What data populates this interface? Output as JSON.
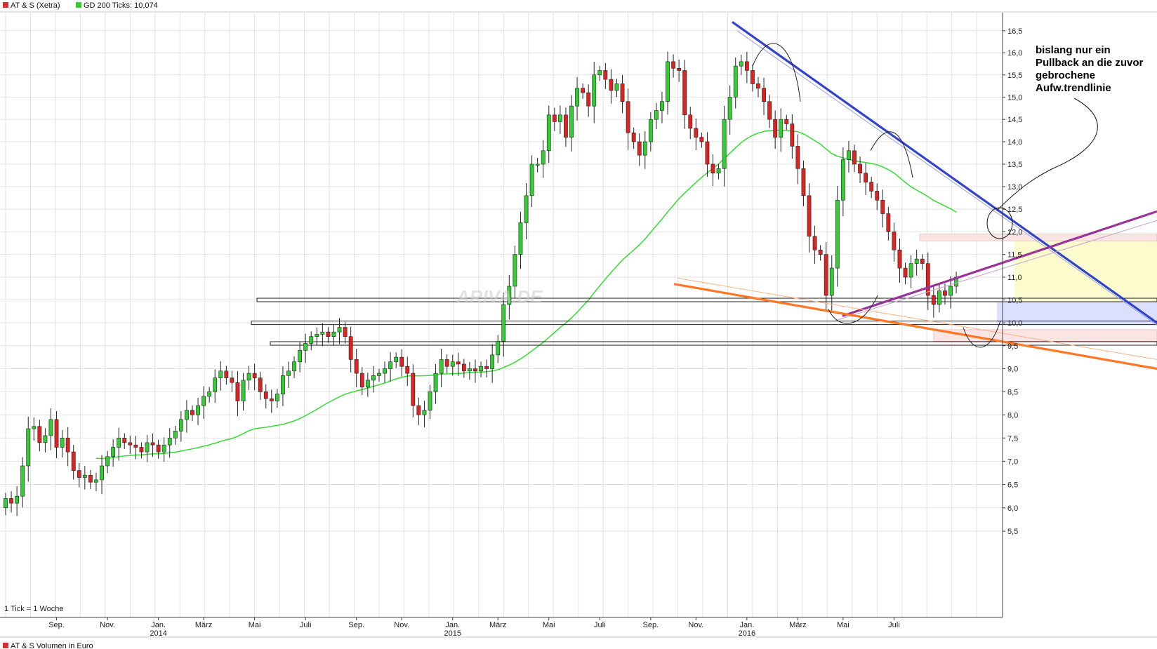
{
  "header": {
    "instrument_legend": "AT & S (Xetra)",
    "ma_legend": "GD 200 Ticks: 10,074",
    "instrument_color": "#d63030",
    "ma_color": "#33cc33"
  },
  "footer": {
    "tick_note": "1 Tick = 1 Woche",
    "volume_legend": "AT & S Volumen in Euro"
  },
  "watermark": "ARIVA.DE",
  "annotation": {
    "lines": [
      "bislang nur ein",
      "Pullback an die zuvor",
      "gebrochene",
      "Aufw.trendlinie"
    ]
  },
  "colors": {
    "up": "#33cc33",
    "down": "#dd2222",
    "grid": "#e2e2e2",
    "ma": "#33dd33",
    "downtrend": "#3344cc",
    "uptrend": "#993399",
    "support": "#ff7722"
  },
  "chart_data": {
    "type": "candlestick",
    "currency": "Euro",
    "ylim": [
      5.2,
      16.8
    ],
    "y_ticks": [
      "16,5",
      "16,0",
      "15,5",
      "15,0",
      "14,5",
      "14,0",
      "13,5",
      "13,0",
      "12,5",
      "12,0",
      "11,5",
      "11,0",
      "10,5",
      "10,0",
      "9,5",
      "9,0",
      "8,5",
      "8,0",
      "7,5",
      "7,0",
      "6,5",
      "6,0",
      "5,5"
    ],
    "x_ticks": [
      {
        "label": "Sep.",
        "year": "",
        "week": 9
      },
      {
        "label": "Nov.",
        "year": "",
        "week": 18
      },
      {
        "label": "Jan.",
        "year": "2014",
        "week": 27
      },
      {
        "label": "März",
        "year": "",
        "week": 35
      },
      {
        "label": "Mai",
        "year": "",
        "week": 44
      },
      {
        "label": "Juli",
        "year": "",
        "week": 53
      },
      {
        "label": "Sep.",
        "year": "",
        "week": 62
      },
      {
        "label": "Nov.",
        "year": "",
        "week": 70
      },
      {
        "label": "Jan.",
        "year": "2015",
        "week": 79
      },
      {
        "label": "März",
        "year": "",
        "week": 87
      },
      {
        "label": "Mai",
        "year": "",
        "week": 96
      },
      {
        "label": "Juli",
        "year": "",
        "week": 105
      },
      {
        "label": "Sep.",
        "year": "",
        "week": 114
      },
      {
        "label": "Nov.",
        "year": "",
        "week": 122
      },
      {
        "label": "Jan.",
        "year": "2016",
        "week": 131
      },
      {
        "label": "März",
        "year": "",
        "week": 140
      },
      {
        "label": "Mai",
        "year": "",
        "week": 148
      },
      {
        "label": "Juli",
        "year": "",
        "week": 157
      }
    ],
    "close": [
      6.2,
      6.1,
      6.25,
      6.9,
      7.7,
      7.75,
      7.4,
      7.55,
      7.9,
      7.3,
      7.5,
      7.2,
      6.8,
      6.65,
      6.7,
      6.55,
      6.6,
      6.9,
      7.1,
      7.3,
      7.5,
      7.4,
      7.35,
      7.3,
      7.2,
      7.4,
      7.35,
      7.2,
      7.35,
      7.5,
      7.65,
      7.9,
      8.1,
      8.0,
      8.2,
      8.4,
      8.5,
      8.8,
      8.95,
      8.8,
      8.7,
      8.3,
      8.75,
      8.9,
      8.8,
      8.5,
      8.35,
      8.3,
      8.45,
      8.85,
      8.95,
      9.15,
      9.4,
      9.55,
      9.7,
      9.75,
      9.8,
      9.7,
      9.8,
      9.9,
      9.7,
      9.2,
      8.9,
      8.6,
      8.75,
      8.85,
      8.9,
      9.0,
      9.15,
      9.25,
      9.05,
      8.9,
      8.2,
      8.0,
      8.1,
      8.5,
      8.9,
      9.2,
      9.05,
      9.15,
      9.1,
      8.95,
      9.0,
      8.95,
      9.05,
      9.0,
      9.3,
      9.6,
      10.4,
      10.8,
      11.5,
      12.2,
      12.8,
      13.5,
      13.5,
      13.8,
      14.6,
      14.45,
      14.6,
      14.1,
      14.8,
      15.2,
      15.1,
      14.8,
      15.5,
      15.6,
      15.4,
      15.15,
      15.3,
      14.9,
      14.2,
      14.0,
      13.7,
      14.0,
      14.5,
      14.7,
      14.9,
      15.8,
      15.65,
      15.6,
      14.6,
      14.3,
      14.1,
      14.0,
      13.5,
      13.3,
      13.4,
      14.5,
      15.0,
      15.7,
      15.8,
      15.6,
      15.3,
      15.2,
      14.9,
      14.5,
      14.1,
      14.5,
      14.4,
      13.9,
      13.4,
      12.8,
      11.9,
      11.6,
      11.5,
      10.6,
      11.2,
      12.7,
      13.6,
      13.8,
      13.5,
      13.3,
      13.1,
      12.9,
      12.7,
      12.4,
      12.0,
      11.6,
      11.2,
      11.0,
      11.3,
      11.4,
      11.3,
      10.6,
      10.4,
      10.7,
      10.6,
      10.8,
      11.0
    ]
  }
}
